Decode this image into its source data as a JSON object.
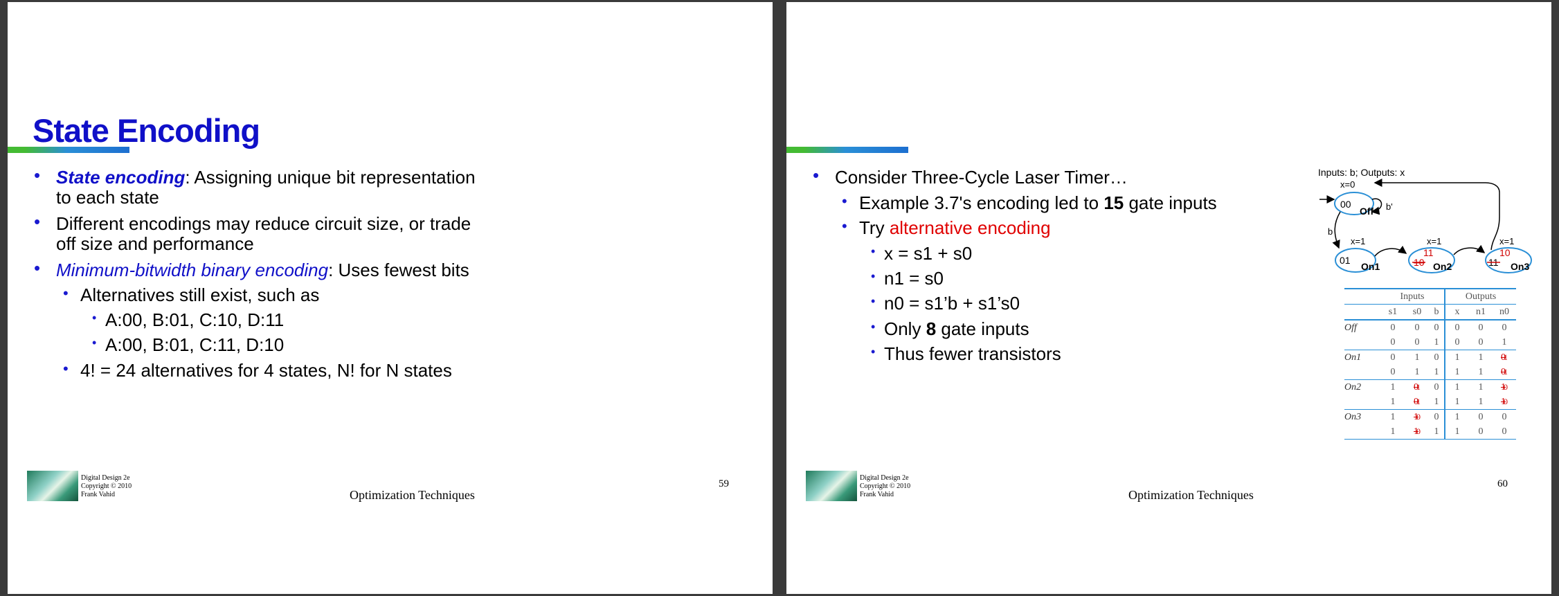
{
  "slide1": {
    "title": "State Encoding",
    "b1_term": "State encoding",
    "b1_rest": ": Assigning unique bit representation",
    "b1_line2": "to each state",
    "b2_line1": "Different encodings may reduce circuit size, or trade",
    "b2_line2": "off size and performance",
    "b3_term": "Minimum-bitwidth binary encoding",
    "b3_rest": ": Uses fewest bits",
    "b4": "Alternatives still exist, such as",
    "b5": "A:00, B:01, C:10, D:11",
    "b6": "A:00, B:01, C:11, D:10",
    "b7": "4! = 24 alternatives for 4 states, N! for N states",
    "footer_line1": "Digital Design 2e",
    "footer_line2": "Copyright © 2010",
    "footer_line3": "Frank Vahid",
    "footer_center": "Optimization Techniques",
    "page": "59"
  },
  "slide2": {
    "b1": "Consider Three-Cycle Laser Timer…",
    "b2_pre": "Example 3.7's encoding led to ",
    "b2_num": "15",
    "b2_post": " gate inputs",
    "b3_pre": "Try ",
    "b3_red": "alternative encoding",
    "b4": "x = s1 + s0",
    "b5": "n1 = s0",
    "b6": "n0 = s1’b + s1’s0",
    "b7_pre": "Only ",
    "b7_num": "8",
    "b7_post": " gate inputs",
    "b8": "Thus fewer transistors",
    "footer_line1": "Digital Design 2e",
    "footer_line2": "Copyright © 2010",
    "footer_line3": "Frank Vahid",
    "footer_center": "Optimization Techniques",
    "page": "60",
    "diagram": {
      "header": "Inputs: b; Outputs: x",
      "off_label": "Off",
      "off_code": "00",
      "off_out": "x=0",
      "off_loop": "b'",
      "b_edge": "b",
      "on1_label": "On1",
      "on1_code": "01",
      "on1_out": "x=1",
      "on2_label": "On2",
      "on2_old": "10",
      "on2_new": "11",
      "on2_out": "x=1",
      "on3_label": "On3",
      "on3_old": "11",
      "on3_new": "10",
      "on3_out": "x=1"
    },
    "table": {
      "inputs_header": "Inputs",
      "outputs_header": "Outputs",
      "cols": [
        "s1",
        "s0",
        "b",
        "x",
        "n1",
        "n0"
      ],
      "rows": [
        {
          "state": "Off",
          "s1": "0",
          "s0": "0",
          "b": "0",
          "x": "0",
          "n1": "0",
          "n0": "0"
        },
        {
          "state": "",
          "s1": "0",
          "s0": "0",
          "b": "1",
          "x": "0",
          "n1": "0",
          "n0": "1"
        },
        {
          "state": "On1",
          "s1": "0",
          "s0": "1",
          "b": "0",
          "x": "1",
          "n1": "1",
          "n0": "0",
          "n0_new": "1"
        },
        {
          "state": "",
          "s1": "0",
          "s0": "1",
          "b": "1",
          "x": "1",
          "n1": "1",
          "n0": "0",
          "n0_new": "1"
        },
        {
          "state": "On2",
          "s1": "1",
          "s0": "0",
          "s0_new": "1",
          "b": "0",
          "x": "1",
          "n1": "1",
          "n0": "1",
          "n0_new": "0"
        },
        {
          "state": "",
          "s1": "1",
          "s0": "0",
          "s0_new": "1",
          "b": "1",
          "x": "1",
          "n1": "1",
          "n0": "1",
          "n0_new": "0"
        },
        {
          "state": "On3",
          "s1": "1",
          "s0": "1",
          "s0_new": "0",
          "b": "0",
          "x": "1",
          "n1": "0",
          "n0": "0"
        },
        {
          "state": "",
          "s1": "1",
          "s0": "1",
          "s0_new": "0",
          "b": "1",
          "x": "1",
          "n1": "0",
          "n0": "0"
        }
      ]
    }
  },
  "colors": {
    "title_blue": "#1010c8",
    "bullet_blue": "#1a1ad0",
    "highlight_red": "#e00000",
    "state_blue": "#2a8fd6",
    "table_blue": "#2a8fd6"
  }
}
